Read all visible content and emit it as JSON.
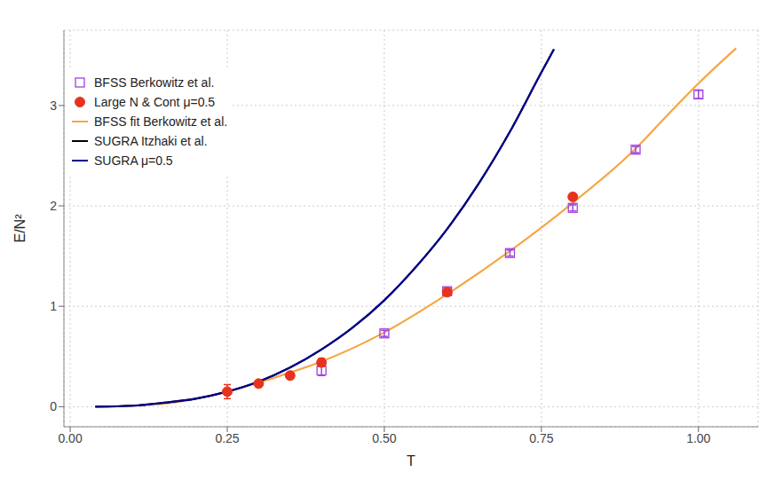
{
  "chart_data": {
    "type": "line",
    "x_label": "T",
    "y_label": "E/N²",
    "xlim": [
      -0.01,
      1.095
    ],
    "ylim": [
      -0.2,
      3.75
    ],
    "xticks": [
      {
        "value": 0,
        "label": "0.00"
      },
      {
        "value": 0.25,
        "label": "0.25"
      },
      {
        "value": 0.5,
        "label": "0.50"
      },
      {
        "value": 0.75,
        "label": "0.75"
      },
      {
        "value": 1,
        "label": "1.00"
      }
    ],
    "yticks": [
      0,
      1,
      2,
      3
    ],
    "grid": true,
    "legend": "top-left",
    "series": [
      {
        "name": "BFSS Berkowitz et al.",
        "type": "scatter",
        "marker": "square",
        "color": "#a040e0",
        "x": [
          0.4,
          0.5,
          0.6,
          0.7,
          0.8,
          0.9,
          1.0
        ],
        "values": [
          0.36,
          0.73,
          1.15,
          1.53,
          1.98,
          2.56,
          3.11
        ],
        "errors": [
          0.05,
          0.03,
          0.03,
          0.03,
          0.03,
          0.03,
          0.04
        ]
      },
      {
        "name": "Large N & Cont μ=0.5",
        "type": "scatter",
        "marker": "circle",
        "color": "#e8321e",
        "x": [
          0.25,
          0.3,
          0.35,
          0.4,
          0.6,
          0.8
        ],
        "values": [
          0.15,
          0.23,
          0.31,
          0.44,
          1.14,
          2.09
        ],
        "errors": [
          0.07,
          0.02,
          0.02,
          0.04,
          0.02,
          0.03
        ]
      },
      {
        "name": "BFSS fit Berkowitz et al.",
        "type": "line",
        "color": "#f5a742",
        "x": [
          0.04,
          0.1,
          0.15,
          0.2,
          0.25,
          0.3,
          0.35,
          0.4,
          0.5,
          0.6,
          0.7,
          0.8,
          0.9,
          0.95,
          1.0,
          1.06
        ],
        "values": [
          0.0,
          0.01,
          0.03,
          0.08,
          0.15,
          0.24,
          0.34,
          0.45,
          0.74,
          1.12,
          1.55,
          2.03,
          2.57,
          2.9,
          3.22,
          3.57
        ]
      },
      {
        "name": "SUGRA Itzhaki et al.",
        "type": "line",
        "color": "#000000",
        "x": [
          0.04,
          0.1,
          0.15,
          0.2,
          0.25,
          0.3,
          0.35,
          0.4,
          0.45,
          0.5,
          0.55,
          0.6,
          0.65,
          0.7,
          0.75,
          0.77
        ],
        "values": [
          0.0,
          0.01,
          0.04,
          0.08,
          0.15,
          0.25,
          0.39,
          0.57,
          0.79,
          1.06,
          1.39,
          1.77,
          2.22,
          2.74,
          3.33,
          3.56
        ]
      },
      {
        "name": "SUGRA μ=0.5",
        "type": "line",
        "color": "#00008b",
        "x": [
          0.04,
          0.1,
          0.15,
          0.2,
          0.25,
          0.3,
          0.35,
          0.4,
          0.45,
          0.5,
          0.55,
          0.6,
          0.65,
          0.7,
          0.75,
          0.77
        ],
        "values": [
          0.0,
          0.01,
          0.04,
          0.08,
          0.15,
          0.25,
          0.39,
          0.57,
          0.79,
          1.06,
          1.39,
          1.77,
          2.22,
          2.74,
          3.33,
          3.56
        ]
      }
    ]
  }
}
